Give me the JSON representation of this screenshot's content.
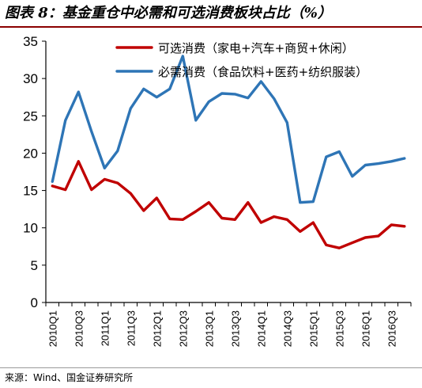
{
  "header": {
    "title": "图表 8：基金重仓中必需和可选消费板块占比（%）"
  },
  "footer": {
    "source": "来源：Wind、国金证券研究所"
  },
  "chart_data": {
    "type": "line",
    "title": "图表 8：基金重仓中必需和可选消费板块占比（%）",
    "xlabel": "",
    "ylabel": "",
    "ylim": [
      0,
      35
    ],
    "yticks": [
      0,
      5,
      10,
      15,
      20,
      25,
      30,
      35
    ],
    "xtick_labels": [
      "2010Q1",
      "2010Q3",
      "2011Q1",
      "2011Q3",
      "2012Q1",
      "2012Q3",
      "2013Q1",
      "2013Q3",
      "2014Q1",
      "2014Q3",
      "2015Q1",
      "2015Q3",
      "2016Q1",
      "2016Q3"
    ],
    "categories": [
      "2010Q1",
      "2010Q2",
      "2010Q3",
      "2010Q4",
      "2011Q1",
      "2011Q2",
      "2011Q3",
      "2011Q4",
      "2012Q1",
      "2012Q2",
      "2012Q3",
      "2012Q4",
      "2013Q1",
      "2013Q2",
      "2013Q3",
      "2013Q4",
      "2014Q1",
      "2014Q2",
      "2014Q3",
      "2014Q4",
      "2015Q1",
      "2015Q2",
      "2015Q3",
      "2015Q4",
      "2016Q1",
      "2016Q2",
      "2016Q3",
      "2016Q4"
    ],
    "grid": false,
    "legend_position": "top-right",
    "series": [
      {
        "name": "可选消费（家电+汽车+商贸+休闲）",
        "color": "#c00000",
        "values": [
          15.6,
          15.1,
          18.9,
          15.1,
          16.5,
          16.0,
          14.6,
          12.3,
          14.0,
          11.2,
          11.1,
          12.2,
          13.4,
          11.3,
          11.1,
          13.4,
          10.7,
          11.5,
          11.1,
          9.5,
          10.7,
          7.7,
          7.3,
          8.0,
          8.7,
          8.9,
          10.4,
          10.2
        ]
      },
      {
        "name": "必需消费（食品饮料+医药+纺织服装）",
        "color": "#2e75b6",
        "values": [
          16.2,
          24.4,
          28.2,
          22.9,
          18.0,
          20.3,
          26.0,
          28.6,
          27.5,
          28.6,
          33.0,
          24.4,
          26.9,
          28.0,
          27.9,
          27.4,
          29.6,
          27.3,
          24.1,
          13.4,
          13.5,
          19.5,
          20.2,
          16.9,
          18.4,
          18.6,
          18.9,
          19.3
        ]
      }
    ]
  }
}
